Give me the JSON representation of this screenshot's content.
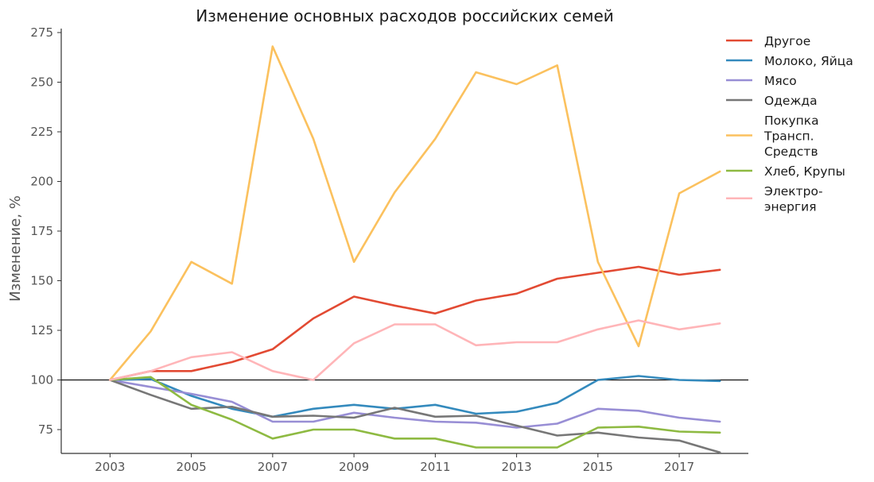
{
  "chart_data": {
    "type": "line",
    "title": "Изменение основных расходов российских семей",
    "xlabel": "",
    "ylabel": "Изменение, %",
    "x": [
      2003,
      2004,
      2005,
      2006,
      2007,
      2008,
      2009,
      2010,
      2011,
      2012,
      2013,
      2014,
      2015,
      2016,
      2017,
      2018
    ],
    "xlim": [
      2001.8,
      2018.7
    ],
    "ylim": [
      63,
      277
    ],
    "x_ticks": [
      2003,
      2005,
      2007,
      2009,
      2011,
      2013,
      2015,
      2017
    ],
    "y_ticks": [
      75,
      100,
      125,
      150,
      175,
      200,
      225,
      250,
      275
    ],
    "reference_line": 100,
    "grid": false,
    "legend_position": "top-right, outside plot",
    "series": [
      {
        "name": "Другое",
        "color": "#e24a33",
        "values": [
          100,
          104.5,
          104.5,
          109,
          115.5,
          131,
          142,
          137.5,
          133.5,
          140,
          143.5,
          151,
          154,
          157,
          153,
          155.5
        ]
      },
      {
        "name": "Молоко, Яйца",
        "color": "#348abd",
        "values": [
          100,
          100.5,
          92,
          85.5,
          81.5,
          85.5,
          87.5,
          85.5,
          87.5,
          83,
          84,
          88.5,
          100,
          102,
          100,
          99.5
        ]
      },
      {
        "name": "Мясо",
        "color": "#988ed5",
        "values": [
          100,
          96.5,
          93,
          89,
          79,
          79,
          83.5,
          81,
          79,
          78.5,
          76,
          78,
          85.5,
          84.5,
          81,
          79
        ]
      },
      {
        "name": "Одежда",
        "color": "#777777",
        "values": [
          100,
          92.5,
          85.5,
          86.5,
          81.5,
          82,
          81,
          86,
          81.5,
          82,
          77,
          72,
          73.5,
          71,
          69.5,
          63.5
        ]
      },
      {
        "name": "Покупка\nТрансп.\nСредств",
        "color": "#fbc15e",
        "values": [
          100,
          124.5,
          159.5,
          148.5,
          268,
          221.5,
          159.5,
          194.5,
          221.5,
          255,
          249,
          258.5,
          159.5,
          117,
          194,
          205
        ]
      },
      {
        "name": "Хлеб, Крупы",
        "color": "#8eba42",
        "values": [
          100,
          101.5,
          87.5,
          80,
          70.5,
          75,
          75,
          70.5,
          70.5,
          66,
          66,
          66,
          76,
          76.5,
          74,
          73.5
        ]
      },
      {
        "name": "Электро-\nэнергия",
        "color": "#ffb5b8",
        "values": [
          100,
          104.5,
          111.5,
          114,
          104.5,
          100,
          118.5,
          128,
          128,
          117.5,
          119,
          119,
          125.5,
          130,
          125.5,
          128.5
        ]
      }
    ]
  }
}
